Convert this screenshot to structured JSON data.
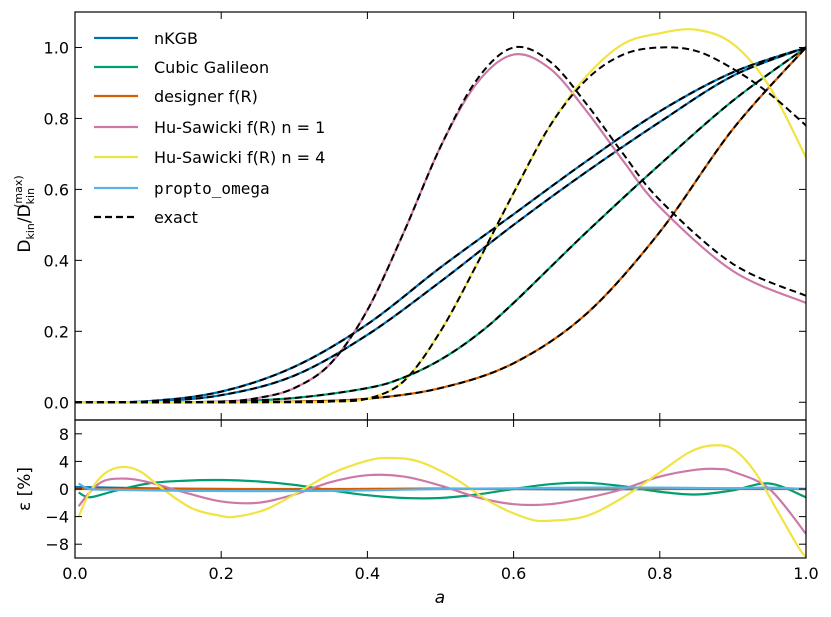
{
  "chart_data": [
    {
      "type": "line",
      "panel": "top",
      "xlabel": "",
      "ylabel": "D_kin / D_kin^(max)",
      "ylabel_parts": {
        "main": "D",
        "sub": "kin",
        "slash": "/",
        "sup": "(max)"
      },
      "xlim": [
        0.0,
        1.0
      ],
      "ylim": [
        -0.05,
        1.1
      ],
      "xticks": [
        0.0,
        0.2,
        0.4,
        0.6,
        0.8,
        1.0
      ],
      "yticks": [
        0.0,
        0.2,
        0.4,
        0.6,
        0.8,
        1.0
      ],
      "ytick_labels": [
        "0.0",
        "0.2",
        "0.4",
        "0.6",
        "0.8",
        "1.0"
      ],
      "legend_position": "top-left",
      "legend": [
        {
          "label": "nKGB",
          "color": "#0072B2",
          "style": "solid"
        },
        {
          "label": "Cubic Galileon",
          "color": "#009E73",
          "style": "solid"
        },
        {
          "label": "designer f(R)",
          "color": "#D55E00",
          "style": "solid"
        },
        {
          "label": "Hu-Sawicki f(R) n = 1",
          "color": "#CC79A7",
          "style": "solid"
        },
        {
          "label": "Hu-Sawicki f(R) n = 4",
          "color": "#F0E442",
          "style": "solid"
        },
        {
          "label": "propto_omega",
          "color": "#56B4E9",
          "style": "solid"
        },
        {
          "label": "exact",
          "color": "#000000",
          "style": "dashed"
        }
      ],
      "series": [
        {
          "name": "nKGB (upper)",
          "color": "#0072B2",
          "x": [
            0.0,
            0.1,
            0.2,
            0.3,
            0.4,
            0.5,
            0.6,
            0.7,
            0.8,
            0.9,
            1.0
          ],
          "y": [
            0.0,
            0.003,
            0.03,
            0.1,
            0.22,
            0.38,
            0.53,
            0.68,
            0.82,
            0.93,
            1.0
          ]
        },
        {
          "name": "nKGB (lower)",
          "color": "#0072B2",
          "x": [
            0.0,
            0.1,
            0.2,
            0.3,
            0.4,
            0.5,
            0.6,
            0.7,
            0.8,
            0.9,
            1.0
          ],
          "y": [
            0.0,
            0.002,
            0.02,
            0.075,
            0.19,
            0.34,
            0.5,
            0.65,
            0.79,
            0.92,
            1.0
          ]
        },
        {
          "name": "Cubic Galileon",
          "color": "#009E73",
          "x": [
            0.0,
            0.1,
            0.2,
            0.3,
            0.4,
            0.45,
            0.5,
            0.55,
            0.6,
            0.7,
            0.8,
            0.9,
            1.0
          ],
          "y": [
            0.0,
            0.0,
            0.002,
            0.012,
            0.04,
            0.07,
            0.12,
            0.19,
            0.28,
            0.48,
            0.67,
            0.85,
            1.0
          ]
        },
        {
          "name": "designer f(R)",
          "color": "#D55E00",
          "x": [
            0.0,
            0.2,
            0.3,
            0.4,
            0.5,
            0.6,
            0.7,
            0.8,
            0.9,
            1.0
          ],
          "y": [
            0.0,
            0.0,
            0.002,
            0.01,
            0.04,
            0.11,
            0.25,
            0.48,
            0.77,
            1.0
          ]
        },
        {
          "name": "Hu-Sawicki f(R) n = 1",
          "color": "#CC79A7",
          "x": [
            0.0,
            0.1,
            0.2,
            0.25,
            0.3,
            0.35,
            0.4,
            0.45,
            0.5,
            0.55,
            0.6,
            0.65,
            0.7,
            0.75,
            0.8,
            0.9,
            1.0
          ],
          "y": [
            0.0,
            0.0,
            0.002,
            0.012,
            0.04,
            0.11,
            0.26,
            0.48,
            0.72,
            0.9,
            0.98,
            0.94,
            0.82,
            0.68,
            0.55,
            0.37,
            0.28
          ]
        },
        {
          "name": "Hu-Sawicki f(R) n = 4",
          "color": "#F0E442",
          "x": [
            0.0,
            0.3,
            0.35,
            0.4,
            0.45,
            0.5,
            0.55,
            0.6,
            0.65,
            0.7,
            0.75,
            0.8,
            0.85,
            0.9,
            0.95,
            1.0
          ],
          "y": [
            0.0,
            0.0,
            0.002,
            0.01,
            0.06,
            0.2,
            0.39,
            0.59,
            0.78,
            0.92,
            1.01,
            1.04,
            1.05,
            1.01,
            0.89,
            0.69
          ]
        },
        {
          "name": "exact (nKGB upper)",
          "color": "#000000",
          "dashed": true,
          "x": [
            0.0,
            0.1,
            0.2,
            0.3,
            0.4,
            0.5,
            0.6,
            0.7,
            0.8,
            0.9,
            1.0
          ],
          "y": [
            0.0,
            0.003,
            0.03,
            0.1,
            0.22,
            0.38,
            0.53,
            0.68,
            0.82,
            0.93,
            1.0
          ]
        },
        {
          "name": "exact (nKGB lower)",
          "color": "#000000",
          "dashed": true,
          "x": [
            0.0,
            0.1,
            0.2,
            0.3,
            0.4,
            0.5,
            0.6,
            0.7,
            0.8,
            0.9,
            1.0
          ],
          "y": [
            0.0,
            0.002,
            0.02,
            0.075,
            0.19,
            0.34,
            0.5,
            0.65,
            0.79,
            0.92,
            1.0
          ]
        },
        {
          "name": "exact (Cubic Galileon)",
          "color": "#000000",
          "dashed": true,
          "x": [
            0.0,
            0.1,
            0.2,
            0.3,
            0.4,
            0.45,
            0.5,
            0.55,
            0.6,
            0.7,
            0.8,
            0.9,
            1.0
          ],
          "y": [
            0.0,
            0.0,
            0.002,
            0.012,
            0.04,
            0.07,
            0.12,
            0.19,
            0.28,
            0.48,
            0.67,
            0.85,
            1.0
          ]
        },
        {
          "name": "exact (designer f(R))",
          "color": "#000000",
          "dashed": true,
          "x": [
            0.0,
            0.2,
            0.3,
            0.4,
            0.5,
            0.6,
            0.7,
            0.8,
            0.9,
            1.0
          ],
          "y": [
            0.0,
            0.0,
            0.002,
            0.01,
            0.04,
            0.11,
            0.25,
            0.48,
            0.77,
            1.0
          ]
        },
        {
          "name": "exact (Hu-Sawicki n = 1)",
          "color": "#000000",
          "dashed": true,
          "x": [
            0.0,
            0.1,
            0.2,
            0.25,
            0.3,
            0.35,
            0.4,
            0.45,
            0.5,
            0.55,
            0.6,
            0.65,
            0.7,
            0.75,
            0.8,
            0.9,
            1.0
          ],
          "y": [
            0.0,
            0.0,
            0.002,
            0.012,
            0.04,
            0.11,
            0.26,
            0.48,
            0.72,
            0.91,
            1.0,
            0.96,
            0.84,
            0.7,
            0.57,
            0.39,
            0.3
          ]
        },
        {
          "name": "exact (Hu-Sawicki n = 4)",
          "color": "#000000",
          "dashed": true,
          "x": [
            0.0,
            0.3,
            0.35,
            0.4,
            0.45,
            0.5,
            0.55,
            0.6,
            0.65,
            0.7,
            0.75,
            0.8,
            0.85,
            0.9,
            0.95,
            1.0
          ],
          "y": [
            0.0,
            0.0,
            0.002,
            0.01,
            0.06,
            0.2,
            0.39,
            0.59,
            0.78,
            0.91,
            0.98,
            1.0,
            0.99,
            0.94,
            0.87,
            0.78
          ]
        }
      ]
    },
    {
      "type": "line",
      "panel": "bottom",
      "xlabel": "a",
      "ylabel": "ε [%]",
      "xlim": [
        0.0,
        1.0
      ],
      "ylim": [
        -10,
        10
      ],
      "xticks": [
        0.0,
        0.2,
        0.4,
        0.6,
        0.8,
        1.0
      ],
      "xtick_labels": [
        "0.0",
        "0.2",
        "0.4",
        "0.6",
        "0.8",
        "1.0"
      ],
      "yticks": [
        -8,
        -4,
        0,
        4,
        8
      ],
      "ytick_labels": [
        "−8",
        "−4",
        "0",
        "4",
        "8"
      ],
      "series": [
        {
          "name": "nKGB",
          "color": "#0072B2",
          "x": [
            0.0,
            0.1,
            0.2,
            0.3,
            0.4,
            0.5,
            0.6,
            0.7,
            0.8,
            0.9,
            1.0
          ],
          "y": [
            0.3,
            0.1,
            0.0,
            -0.05,
            0.0,
            0.05,
            0.0,
            -0.05,
            0.0,
            0.1,
            0.0
          ]
        },
        {
          "name": "Cubic Galileon",
          "color": "#009E73",
          "x": [
            0.005,
            0.02,
            0.05,
            0.1,
            0.15,
            0.2,
            0.25,
            0.3,
            0.35,
            0.4,
            0.45,
            0.5,
            0.55,
            0.6,
            0.65,
            0.7,
            0.75,
            0.8,
            0.85,
            0.9,
            0.95,
            1.0
          ],
          "y": [
            -0.5,
            -1.2,
            -0.4,
            0.8,
            1.2,
            1.3,
            1.1,
            0.6,
            -0.2,
            -0.9,
            -1.3,
            -1.3,
            -0.8,
            0.0,
            0.7,
            0.9,
            0.4,
            -0.4,
            -0.8,
            -0.2,
            0.8,
            -1.2
          ]
        },
        {
          "name": "designer f(R)",
          "color": "#D55E00",
          "x": [
            0.0,
            0.2,
            0.4,
            0.6,
            0.8,
            1.0
          ],
          "y": [
            0.0,
            0.0,
            0.0,
            0.0,
            0.0,
            0.0
          ]
        },
        {
          "name": "Hu-Sawicki f(R) n = 1",
          "color": "#CC79A7",
          "x": [
            0.005,
            0.02,
            0.04,
            0.07,
            0.1,
            0.15,
            0.2,
            0.25,
            0.3,
            0.35,
            0.4,
            0.45,
            0.5,
            0.55,
            0.6,
            0.65,
            0.7,
            0.75,
            0.8,
            0.85,
            0.88,
            0.9,
            0.95,
            1.0
          ],
          "y": [
            -2.5,
            -0.5,
            1.2,
            1.5,
            1.0,
            -0.5,
            -1.8,
            -2.0,
            -0.8,
            1.0,
            2.0,
            1.8,
            0.5,
            -1.2,
            -2.2,
            -2.2,
            -1.3,
            0.0,
            1.8,
            2.8,
            2.9,
            2.5,
            0.0,
            -6.5
          ]
        },
        {
          "name": "Hu-Sawicki f(R) n = 4",
          "color": "#F0E442",
          "x": [
            0.005,
            0.02,
            0.04,
            0.065,
            0.09,
            0.12,
            0.16,
            0.2,
            0.22,
            0.26,
            0.3,
            0.35,
            0.4,
            0.43,
            0.47,
            0.52,
            0.57,
            0.62,
            0.65,
            0.7,
            0.75,
            0.8,
            0.84,
            0.87,
            0.9,
            0.93,
            0.96,
            0.99,
            1.0
          ],
          "y": [
            -4.0,
            -0.5,
            2.2,
            3.2,
            2.5,
            0.0,
            -2.8,
            -3.9,
            -4.0,
            -3.0,
            -0.8,
            2.2,
            4.1,
            4.5,
            4.0,
            1.5,
            -2.0,
            -4.3,
            -4.6,
            -3.9,
            -1.2,
            2.4,
            5.3,
            6.3,
            5.8,
            2.5,
            -3.0,
            -8.5,
            -9.8
          ]
        },
        {
          "name": "propto_omega",
          "color": "#56B4E9",
          "x": [
            0.005,
            0.02,
            0.05,
            0.1,
            0.2,
            0.3,
            0.4,
            0.5,
            0.6,
            0.7,
            0.8,
            0.9,
            0.95,
            1.0
          ],
          "y": [
            0.8,
            0.0,
            -0.1,
            -0.2,
            -0.3,
            -0.3,
            -0.2,
            0.0,
            0.1,
            0.2,
            0.2,
            0.1,
            0.2,
            0.0
          ]
        }
      ]
    }
  ]
}
